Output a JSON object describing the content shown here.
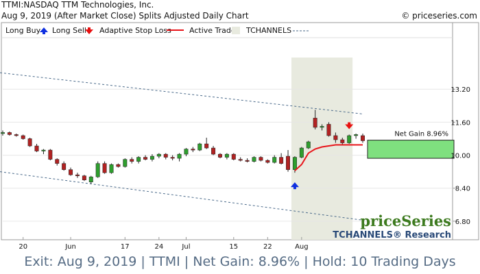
{
  "header": {
    "title": "TTMI:NASDAQ TTM Technologies, Inc.",
    "subtitle": "Aug 9, 2019 (After Market Close)  Splits Adjusted Daily Chart",
    "copyright": "© priceseries.com"
  },
  "legend": {
    "long_buy": "Long Buy",
    "long_sell": "Long Sell",
    "adaptive_stop": "Adaptive Stop Loss",
    "active_trade": "Active Trade",
    "tchannels": "TCHANNELS"
  },
  "branding": {
    "logo": "priceSeries",
    "research": "TCHANNELS® Research"
  },
  "footer": "Exit: Aug 9, 2019 | TTMI | Net Gain: 8.96% | Hold: 10 Trading Days",
  "colors": {
    "up": "#2e9e2e",
    "down": "#b22222",
    "stop": "#e8141a",
    "buy_arrow": "#1030e0",
    "sell_arrow": "#e81010",
    "active_trade": "#e8eadf",
    "gain_box": "#7fe07f",
    "channel": "#4a6a8a",
    "footer_text": "#556b84",
    "logo_green": "#3c7a1e",
    "research_blue": "#2a4a78"
  },
  "chart_data": {
    "type": "candlestick",
    "yticks": [
      6.8,
      8.4,
      10.0,
      11.6,
      13.2
    ],
    "ylim": [
      5.9,
      15.6
    ],
    "xtick_labels": [
      {
        "index": 3,
        "label": "20"
      },
      {
        "index": 10,
        "label": "Jun"
      },
      {
        "index": 18,
        "label": "17"
      },
      {
        "index": 23,
        "label": "24"
      },
      {
        "index": 27,
        "label": "Jul"
      },
      {
        "index": 34,
        "label": "15"
      },
      {
        "index": 39,
        "label": "22"
      },
      {
        "index": 44,
        "label": "Aug"
      }
    ],
    "candles": [
      {
        "o": 11.05,
        "h": 11.2,
        "l": 10.95,
        "c": 11.1
      },
      {
        "o": 11.1,
        "h": 11.15,
        "l": 10.95,
        "c": 11.0
      },
      {
        "o": 11.0,
        "h": 11.05,
        "l": 10.9,
        "c": 10.95
      },
      {
        "o": 10.95,
        "h": 11.0,
        "l": 10.75,
        "c": 10.8
      },
      {
        "o": 10.8,
        "h": 10.85,
        "l": 10.4,
        "c": 10.45
      },
      {
        "o": 10.45,
        "h": 10.55,
        "l": 10.15,
        "c": 10.2
      },
      {
        "o": 10.2,
        "h": 10.3,
        "l": 10.05,
        "c": 10.25
      },
      {
        "o": 10.25,
        "h": 10.3,
        "l": 9.75,
        "c": 9.8
      },
      {
        "o": 9.8,
        "h": 9.85,
        "l": 9.5,
        "c": 9.6
      },
      {
        "o": 9.6,
        "h": 9.7,
        "l": 9.25,
        "c": 9.3
      },
      {
        "o": 9.3,
        "h": 9.4,
        "l": 9.0,
        "c": 9.05
      },
      {
        "o": 9.05,
        "h": 9.15,
        "l": 8.9,
        "c": 9.0
      },
      {
        "o": 9.0,
        "h": 9.05,
        "l": 8.75,
        "c": 8.8
      },
      {
        "o": 8.7,
        "h": 9.0,
        "l": 8.6,
        "c": 8.95
      },
      {
        "o": 8.95,
        "h": 9.7,
        "l": 8.9,
        "c": 9.6
      },
      {
        "o": 9.6,
        "h": 9.7,
        "l": 9.1,
        "c": 9.15
      },
      {
        "o": 9.15,
        "h": 9.6,
        "l": 9.1,
        "c": 9.55
      },
      {
        "o": 9.55,
        "h": 9.6,
        "l": 9.4,
        "c": 9.45
      },
      {
        "o": 9.45,
        "h": 9.85,
        "l": 9.4,
        "c": 9.8
      },
      {
        "o": 9.8,
        "h": 9.9,
        "l": 9.6,
        "c": 9.7
      },
      {
        "o": 9.7,
        "h": 9.95,
        "l": 9.6,
        "c": 9.9
      },
      {
        "o": 9.9,
        "h": 10.0,
        "l": 9.75,
        "c": 9.8
      },
      {
        "o": 9.8,
        "h": 10.05,
        "l": 9.7,
        "c": 9.95
      },
      {
        "o": 9.95,
        "h": 10.1,
        "l": 9.85,
        "c": 10.05
      },
      {
        "o": 10.05,
        "h": 10.1,
        "l": 9.8,
        "c": 9.9
      },
      {
        "o": 9.9,
        "h": 10.0,
        "l": 9.75,
        "c": 9.85
      },
      {
        "o": 9.85,
        "h": 10.1,
        "l": 9.7,
        "c": 10.05
      },
      {
        "o": 10.05,
        "h": 10.35,
        "l": 9.95,
        "c": 10.3
      },
      {
        "o": 10.3,
        "h": 10.4,
        "l": 10.15,
        "c": 10.25
      },
      {
        "o": 10.25,
        "h": 10.6,
        "l": 10.2,
        "c": 10.55
      },
      {
        "o": 10.55,
        "h": 10.85,
        "l": 10.3,
        "c": 10.35
      },
      {
        "o": 10.35,
        "h": 10.45,
        "l": 10.0,
        "c": 10.05
      },
      {
        "o": 10.05,
        "h": 10.1,
        "l": 9.85,
        "c": 9.9
      },
      {
        "o": 9.9,
        "h": 10.1,
        "l": 9.8,
        "c": 10.05
      },
      {
        "o": 10.05,
        "h": 10.1,
        "l": 9.75,
        "c": 9.8
      },
      {
        "o": 9.8,
        "h": 9.9,
        "l": 9.7,
        "c": 9.75
      },
      {
        "o": 9.75,
        "h": 9.85,
        "l": 9.65,
        "c": 9.7
      },
      {
        "o": 9.7,
        "h": 9.95,
        "l": 9.65,
        "c": 9.9
      },
      {
        "o": 9.9,
        "h": 9.95,
        "l": 9.7,
        "c": 9.75
      },
      {
        "o": 9.75,
        "h": 9.8,
        "l": 9.6,
        "c": 9.65
      },
      {
        "o": 9.65,
        "h": 10.0,
        "l": 9.6,
        "c": 9.9
      },
      {
        "o": 9.9,
        "h": 10.1,
        "l": 9.55,
        "c": 9.6
      },
      {
        "o": 9.95,
        "h": 10.25,
        "l": 9.2,
        "c": 9.3
      },
      {
        "o": 9.3,
        "h": 9.95,
        "l": 9.15,
        "c": 9.9
      },
      {
        "o": 9.9,
        "h": 10.4,
        "l": 9.85,
        "c": 10.35
      },
      {
        "o": 10.35,
        "h": 10.7,
        "l": 10.3,
        "c": 10.65
      },
      {
        "o": 11.8,
        "h": 12.2,
        "l": 11.25,
        "c": 11.35
      },
      {
        "o": 11.35,
        "h": 11.5,
        "l": 11.2,
        "c": 11.4
      },
      {
        "o": 11.5,
        "h": 11.6,
        "l": 10.9,
        "c": 10.95
      },
      {
        "o": 10.95,
        "h": 11.1,
        "l": 10.6,
        "c": 10.75
      },
      {
        "o": 10.75,
        "h": 10.85,
        "l": 10.5,
        "c": 10.6
      },
      {
        "o": 10.6,
        "h": 11.0,
        "l": 10.55,
        "c": 10.95
      },
      {
        "o": 10.95,
        "h": 11.05,
        "l": 10.8,
        "c": 11.0
      },
      {
        "o": 10.95,
        "h": 11.05,
        "l": 10.6,
        "c": 10.7
      }
    ],
    "buy_index": 43,
    "sell_index": 51,
    "active_trade_range": [
      43,
      51
    ],
    "stop_loss": [
      {
        "index": 43,
        "value": 9.25
      },
      {
        "index": 44,
        "value": 9.55
      },
      {
        "index": 45,
        "value": 10.1
      },
      {
        "index": 46,
        "value": 10.3
      },
      {
        "index": 47,
        "value": 10.4
      },
      {
        "index": 48,
        "value": 10.45
      },
      {
        "index": 49,
        "value": 10.5
      },
      {
        "index": 50,
        "value": 10.5
      },
      {
        "index": 51,
        "value": 10.5
      },
      {
        "index": 52,
        "value": 10.5
      },
      {
        "index": 53,
        "value": 10.5
      }
    ],
    "channel_upper": [
      {
        "index": 0,
        "value": 14.0
      },
      {
        "index": 53,
        "value": 12.0
      }
    ],
    "channel_lower": [
      {
        "index": 0,
        "value": 9.2
      },
      {
        "index": 53,
        "value": 6.85
      }
    ],
    "gain_box": {
      "label": "Net Gain 8.96%",
      "from": 9.85,
      "to": 10.73
    }
  }
}
